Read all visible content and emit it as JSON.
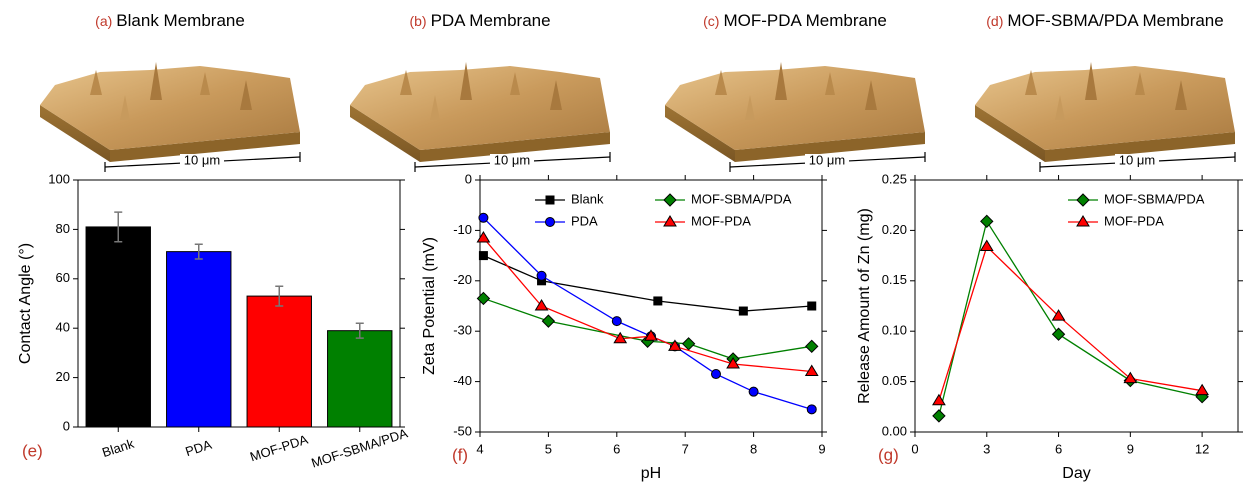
{
  "images": [
    {
      "label": "(a)",
      "title": "Blank Membrane",
      "scale_bar": "10 μm"
    },
    {
      "label": "(b)",
      "title": "PDA Membrane",
      "scale_bar": "10 μm"
    },
    {
      "label": "(c)",
      "title": "MOF-PDA Membrane",
      "scale_bar": "10 μm"
    },
    {
      "label": "(d)",
      "title": "MOF-SBMA/PDA Membrane",
      "scale_bar": "10 μm"
    }
  ],
  "chart_data": [
    {
      "type": "bar",
      "panel_label": "(e)",
      "y_label": "Contact Angle (°)",
      "categories": [
        "Blank",
        "PDA",
        "MOF-PDA",
        "MOF-SBMA/PDA"
      ],
      "values": [
        81,
        71,
        53,
        39
      ],
      "errors": [
        6,
        3,
        4,
        3
      ],
      "colors": [
        "#000000",
        "#0000ff",
        "#ff0000",
        "#008000"
      ],
      "ylim": [
        0,
        100
      ],
      "yticks": [
        0,
        20,
        40,
        60,
        80,
        100
      ]
    },
    {
      "type": "line",
      "panel_label": "(f)",
      "x_label": "pH",
      "y_label": "Zeta Potential (mV)",
      "xlim": [
        4,
        9
      ],
      "xticks": [
        4,
        5,
        6,
        7,
        8,
        9
      ],
      "ylim": [
        -50,
        0
      ],
      "yticks": [
        -50,
        -40,
        -30,
        -20,
        -10,
        0
      ],
      "legend": "upper center",
      "series": [
        {
          "name": "Blank",
          "color": "#000000",
          "marker": "square",
          "x": [
            4.05,
            4.9,
            6.6,
            7.85,
            8.85
          ],
          "values": [
            -15,
            -20,
            -24,
            -26,
            -25
          ]
        },
        {
          "name": "PDA",
          "color": "#0000ff",
          "marker": "circle",
          "x": [
            4.05,
            4.9,
            6.0,
            6.5,
            6.85,
            7.45,
            8.0,
            8.85
          ],
          "values": [
            -7.5,
            -19,
            -28,
            -31,
            -33,
            -38.5,
            -42,
            -45.5
          ]
        },
        {
          "name": "MOF-SBMA/PDA",
          "color": "#008000",
          "marker": "diamond",
          "x": [
            4.05,
            5.0,
            6.45,
            7.05,
            7.7,
            8.85
          ],
          "values": [
            -23.5,
            -28,
            -32,
            -32.5,
            -35.5,
            -33
          ]
        },
        {
          "name": "MOF-PDA",
          "color": "#ff0000",
          "marker": "triangle",
          "x": [
            4.05,
            4.9,
            6.05,
            6.5,
            6.85,
            7.7,
            8.85
          ],
          "values": [
            -11.5,
            -25,
            -31.5,
            -31,
            -33,
            -36.5,
            -38
          ]
        }
      ]
    },
    {
      "type": "line",
      "panel_label": "(g)",
      "x_label": "Day",
      "y_label": "Release Amount of Zn (mg)",
      "xlim": [
        0,
        13.5
      ],
      "xticks": [
        0,
        3,
        6,
        9,
        12
      ],
      "ylim": [
        0,
        0.25
      ],
      "yticks": [
        {
          "value": 0,
          "label": "0.00"
        },
        {
          "value": 0.05,
          "label": "0.05"
        },
        {
          "value": 0.1,
          "label": "0.10"
        },
        {
          "value": 0.15,
          "label": "0.15"
        },
        {
          "value": 0.2,
          "label": "0.20"
        },
        {
          "value": 0.25,
          "label": "0.25"
        }
      ],
      "legend": "upper right",
      "series": [
        {
          "name": "MOF-SBMA/PDA",
          "color": "#008000",
          "marker": "diamond",
          "x": [
            1,
            3,
            6,
            9,
            12
          ],
          "values": [
            0.016,
            0.209,
            0.097,
            0.051,
            0.035
          ]
        },
        {
          "name": "MOF-PDA",
          "color": "#ff0000",
          "marker": "triangle",
          "x": [
            1,
            3,
            6,
            9,
            12
          ],
          "values": [
            0.031,
            0.184,
            0.115,
            0.053,
            0.041
          ]
        }
      ]
    }
  ]
}
